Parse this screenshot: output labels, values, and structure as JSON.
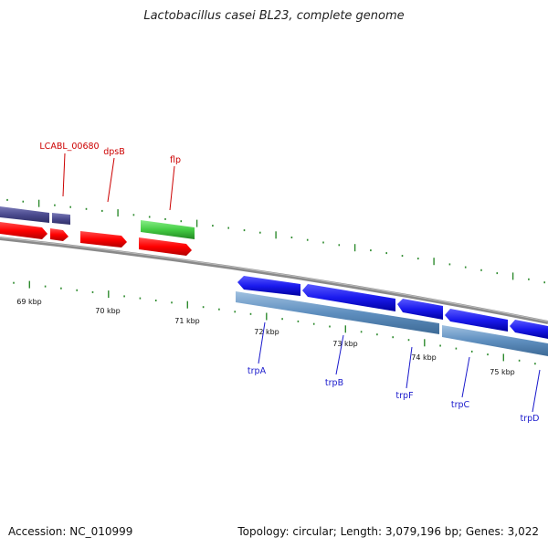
{
  "title": "Lactobacillus casei BL23, complete genome",
  "footer": {
    "accession": "Accession: NC_010999",
    "summary": "Topology: circular; Length: 3,079,196 bp; Genes: 3,022"
  },
  "colors": {
    "label_red": "#cc0000",
    "label_blue": "#1a1acc",
    "tick_green": "#2e8b2e",
    "backbone_gray": "#888888",
    "gene_red": "#ff0000",
    "gene_green": "#44cc44",
    "gene_purple": "#4b4b8f",
    "gene_blue": "#1a1aee",
    "gene_steelblue": "#5f8fbf"
  },
  "kbp_labels": [
    "69 kbp",
    "70 kbp",
    "71 kbp",
    "72 kbp",
    "73 kbp",
    "74 kbp",
    "75 kbp"
  ],
  "gene_labels_top": [
    "LCABL_00680",
    "dpsB",
    "flp"
  ],
  "gene_labels_bottom": [
    "trpA",
    "trpB",
    "trpF",
    "trpC",
    "trpD"
  ]
}
